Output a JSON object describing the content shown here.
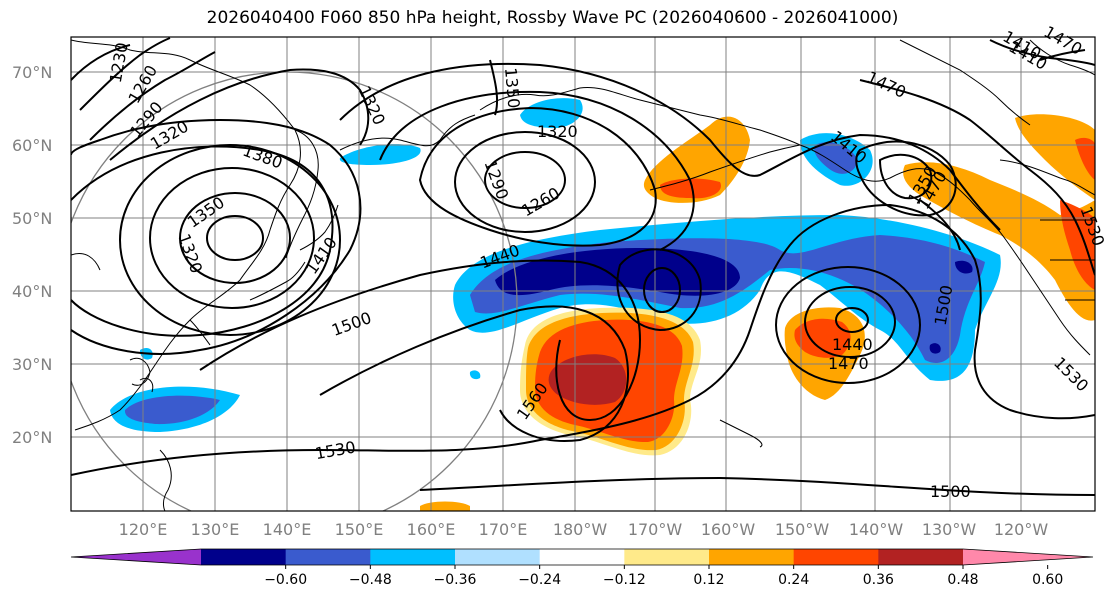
{
  "title": "2026040400 F060 850 hPa height, Rossby Wave PC (2026040600 - 2026041000)",
  "lat_labels": [
    "70°N",
    "60°N",
    "50°N",
    "40°N",
    "30°N",
    "20°N"
  ],
  "lon_labels": [
    "120°E",
    "130°E",
    "140°E",
    "150°E",
    "160°E",
    "170°E",
    "180°W",
    "170°W",
    "160°W",
    "150°W",
    "140°W",
    "130°W",
    "120°W"
  ],
  "contour_labels": [
    "1230",
    "1260",
    "1290",
    "1320",
    "1320",
    "1350",
    "1380",
    "1320",
    "1350",
    "1410",
    "1320",
    "1290",
    "1260",
    "1350",
    "1440",
    "1500",
    "1560",
    "1530",
    "1410",
    "1470",
    "1410",
    "1440",
    "1470",
    "1500",
    "1530",
    "1500",
    "1530",
    "1410",
    "1470",
    "1470"
  ],
  "colorbar": {
    "ticks": [
      "−0.60",
      "−0.48",
      "−0.36",
      "−0.24",
      "−0.12",
      "0.12",
      "0.24",
      "0.36",
      "0.48",
      "0.60"
    ],
    "colors": [
      "#9932CC",
      "#00008B",
      "#3A5BCE",
      "#00BFFF",
      "#B0E0FF",
      "#FFFFFF",
      "#FFEA8A",
      "#FFA500",
      "#FF4500",
      "#B22222",
      "#FF88AA"
    ]
  }
}
